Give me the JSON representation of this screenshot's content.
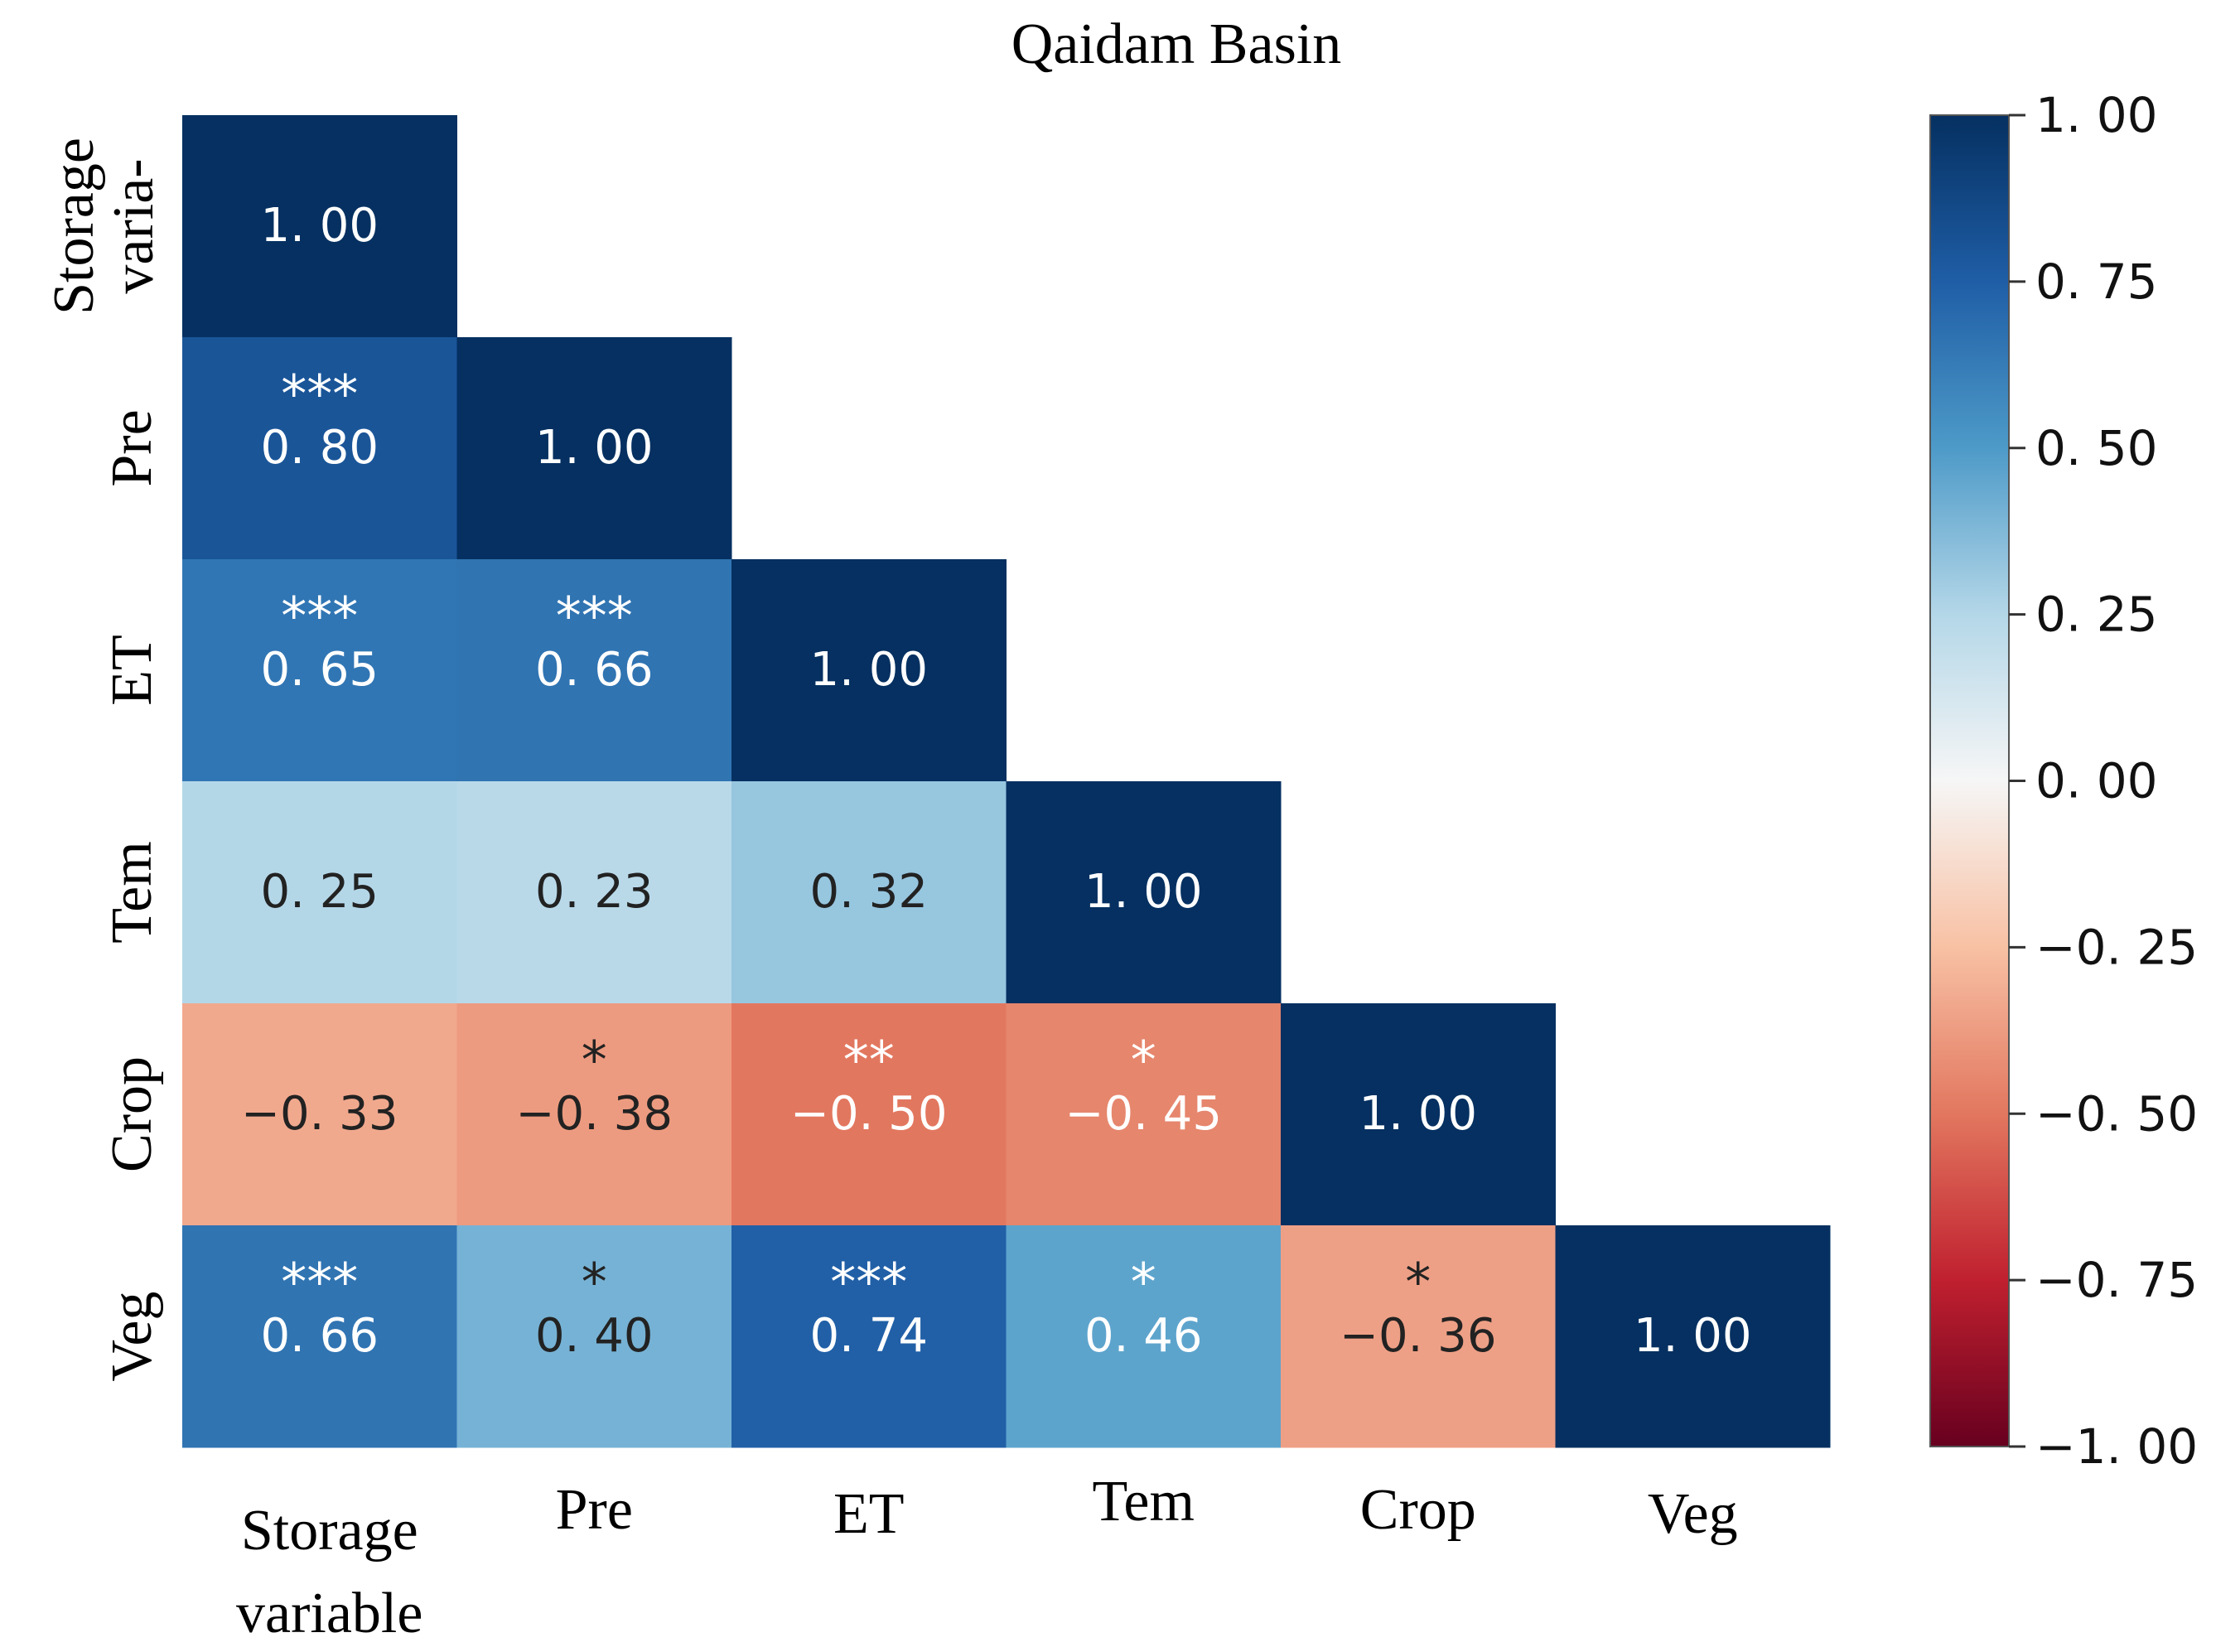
{
  "chart_data": {
    "type": "heatmap",
    "title": "Qaidam Basin",
    "variables": [
      "Storage variable",
      "Pre",
      "ET",
      "Tem",
      "Crop",
      "Veg"
    ],
    "y_tick_labels": [
      [
        "Storage",
        "varia-"
      ],
      [
        "Pre"
      ],
      [
        "ET"
      ],
      [
        "Tem"
      ],
      [
        "Crop"
      ],
      [
        "Veg"
      ]
    ],
    "x_tick_labels": [
      [
        "Storage",
        "variable"
      ],
      [
        "Pre"
      ],
      [
        "ET"
      ],
      [
        "Tem"
      ],
      [
        "Crop"
      ],
      [
        "Veg"
      ]
    ],
    "matrix": [
      [
        1.0,
        null,
        null,
        null,
        null,
        null
      ],
      [
        0.8,
        1.0,
        null,
        null,
        null,
        null
      ],
      [
        0.65,
        0.66,
        1.0,
        null,
        null,
        null
      ],
      [
        0.25,
        0.23,
        0.32,
        1.0,
        null,
        null
      ],
      [
        -0.33,
        -0.38,
        -0.5,
        -0.45,
        1.0,
        null
      ],
      [
        0.66,
        0.4,
        0.74,
        0.46,
        -0.36,
        1.0
      ]
    ],
    "cell_labels": [
      [
        "1. 00"
      ],
      [
        "0. 80",
        "1. 00"
      ],
      [
        "0. 65",
        "0. 66",
        "1. 00"
      ],
      [
        "0. 25",
        "0. 23",
        "0. 32",
        "1. 00"
      ],
      [
        "−0. 33",
        "−0. 38",
        "−0. 50",
        "−0. 45",
        "1. 00"
      ],
      [
        "0. 66",
        "0. 40",
        "0. 74",
        "0. 46",
        "−0. 36",
        "1. 00"
      ]
    ],
    "significance": [
      [
        ""
      ],
      [
        "***",
        ""
      ],
      [
        "***",
        "***",
        ""
      ],
      [
        "",
        "",
        "",
        ""
      ],
      [
        "",
        "*",
        "**",
        "*",
        ""
      ],
      [
        "***",
        "*",
        "***",
        "*",
        "*",
        ""
      ]
    ],
    "colorbar": {
      "range": [
        -1.0,
        1.0
      ],
      "colormap": "RdBu",
      "ticks": [
        1.0,
        0.75,
        0.5,
        0.25,
        0.0,
        -0.25,
        -0.5,
        -0.75,
        -1.0
      ],
      "tick_labels": [
        "1. 00",
        "0. 75",
        "0. 50",
        "0. 25",
        "0. 00",
        "−0. 25",
        "−0. 50",
        "−0. 75",
        "−1. 00"
      ]
    }
  }
}
